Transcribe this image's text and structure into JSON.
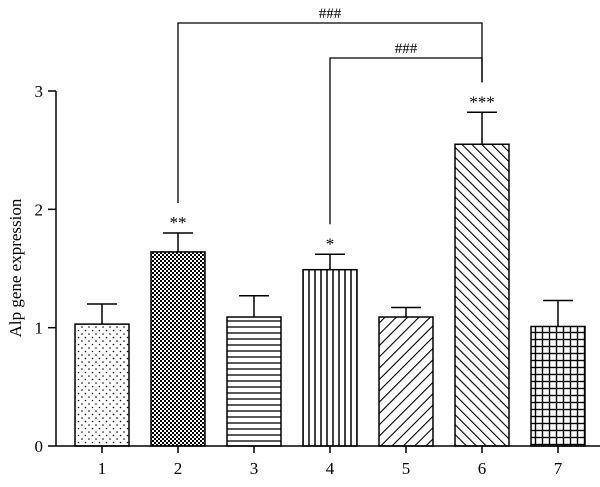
{
  "chart_data": {
    "type": "bar",
    "categories": [
      "1",
      "2",
      "3",
      "4",
      "5",
      "6",
      "7"
    ],
    "values": [
      1.03,
      1.64,
      1.09,
      1.49,
      1.09,
      2.55,
      1.01
    ],
    "errors": [
      0.17,
      0.16,
      0.18,
      0.13,
      0.08,
      0.27,
      0.22
    ],
    "patterns": [
      "dots",
      "checker",
      "hlines",
      "vlines",
      "diag-right",
      "diag-left",
      "grid"
    ],
    "significance": [
      "",
      "**",
      "",
      "*",
      "",
      "***",
      ""
    ],
    "comparisons": [
      {
        "from": "2",
        "to": "6",
        "label": "###"
      },
      {
        "from": "4",
        "to": "6",
        "label": "###"
      }
    ],
    "title": "",
    "xlabel": "",
    "ylabel": "Alp gene expression",
    "ylim": [
      0,
      3
    ],
    "yticks": [
      0,
      1,
      2,
      3
    ],
    "grid": false,
    "bar_color": "#000000"
  }
}
